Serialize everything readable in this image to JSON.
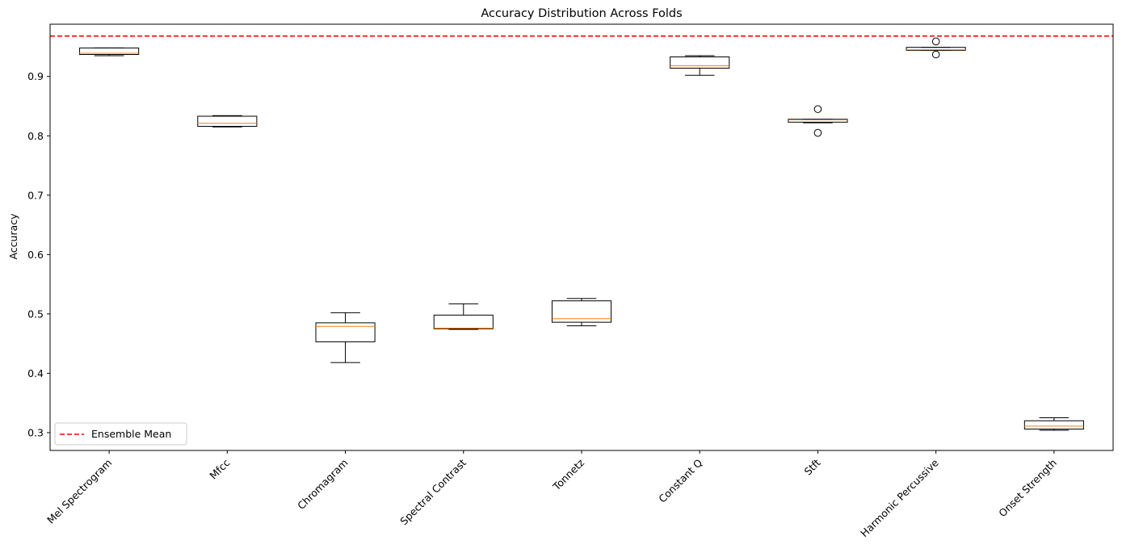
{
  "chart_data": {
    "type": "box",
    "title": "Accuracy Distribution Across Folds",
    "xlabel": "",
    "ylabel": "Accuracy",
    "ylim": [
      0.27,
      0.988
    ],
    "yticks": [
      0.3,
      0.4,
      0.5,
      0.6,
      0.7,
      0.8,
      0.9
    ],
    "ytick_labels": [
      "0.3",
      "0.4",
      "0.5",
      "0.6",
      "0.7",
      "0.8",
      "0.9"
    ],
    "categories": [
      "Mel Spectrogram",
      "Mfcc",
      "Chromagram",
      "Spectral Contrast",
      "Tonnetz",
      "Constant Q",
      "Stft",
      "Harmonic Percussive",
      "Onset Strength"
    ],
    "boxes": [
      {
        "whisker_low": 0.935,
        "q1": 0.937,
        "median": 0.939,
        "q3": 0.948,
        "whisker_high": 0.948,
        "outliers": []
      },
      {
        "whisker_low": 0.815,
        "q1": 0.816,
        "median": 0.821,
        "q3": 0.833,
        "whisker_high": 0.834,
        "outliers": []
      },
      {
        "whisker_low": 0.418,
        "q1": 0.453,
        "median": 0.479,
        "q3": 0.485,
        "whisker_high": 0.502,
        "outliers": []
      },
      {
        "whisker_low": 0.474,
        "q1": 0.475,
        "median": 0.476,
        "q3": 0.498,
        "whisker_high": 0.517,
        "outliers": []
      },
      {
        "whisker_low": 0.48,
        "q1": 0.486,
        "median": 0.492,
        "q3": 0.522,
        "whisker_high": 0.526,
        "outliers": []
      },
      {
        "whisker_low": 0.902,
        "q1": 0.914,
        "median": 0.918,
        "q3": 0.933,
        "whisker_high": 0.935,
        "outliers": []
      },
      {
        "whisker_low": 0.822,
        "q1": 0.823,
        "median": 0.827,
        "q3": 0.828,
        "whisker_high": 0.828,
        "outliers": [
          0.845,
          0.805
        ]
      },
      {
        "whisker_low": 0.944,
        "q1": 0.944,
        "median": 0.945,
        "q3": 0.949,
        "whisker_high": 0.949,
        "outliers": [
          0.959,
          0.937
        ]
      },
      {
        "whisker_low": 0.304,
        "q1": 0.306,
        "median": 0.311,
        "q3": 0.32,
        "whisker_high": 0.325,
        "outliers": []
      }
    ],
    "reference_line": {
      "label": "Ensemble Mean",
      "value": 0.968,
      "color": "#ff0000",
      "style": "dashed"
    },
    "legend": {
      "position": "lower-left",
      "entries": [
        "Ensemble Mean"
      ]
    },
    "colors": {
      "box": "#000000",
      "median": "#ff7f0e",
      "axes": "#000000"
    },
    "grid": false
  }
}
